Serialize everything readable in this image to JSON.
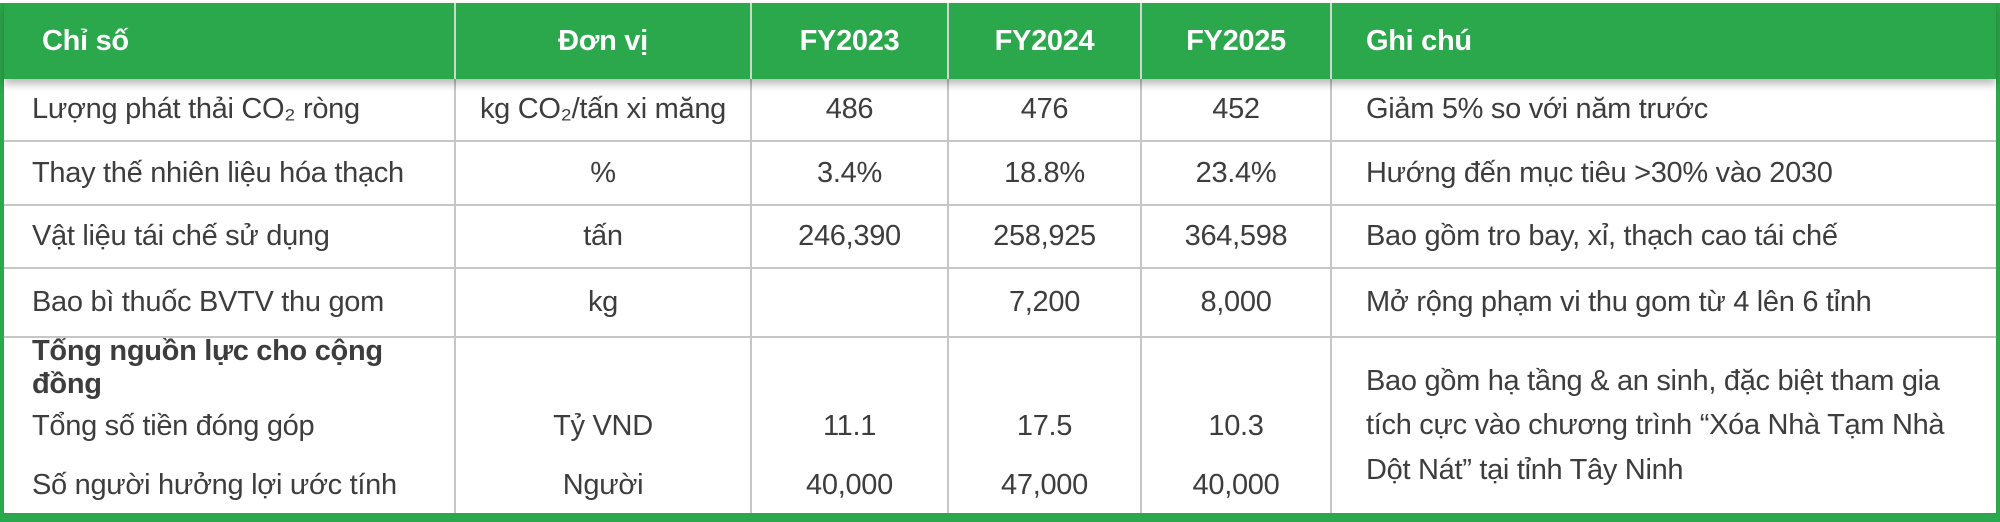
{
  "colors": {
    "accent_green": "#2aa84b",
    "text": "#3d3d3d",
    "grid_line": "#c6c6c6"
  },
  "table": {
    "headers": [
      "Chỉ số",
      "Đơn vị",
      "FY2023",
      "FY2024",
      "FY2025",
      "Ghi chú"
    ],
    "rows": [
      {
        "metric": "Lượng phát thải CO₂ ròng",
        "unit": "kg CO₂/tấn xi măng",
        "values": [
          "486",
          "476",
          "452"
        ],
        "note": "Giảm 5% so với năm trước"
      },
      {
        "metric": "Thay thế nhiên liệu hóa thạch",
        "unit": "%",
        "values": [
          "3.4%",
          "18.8%",
          "23.4%"
        ],
        "note": "Hướng đến mục tiêu >30% vào 2030"
      },
      {
        "metric": "Vật liệu tái chế sử dụng",
        "unit": "tấn",
        "values": [
          "246,390",
          "258,925",
          "364,598"
        ],
        "note": "Bao gồm tro bay, xỉ, thạch cao tái chế"
      },
      {
        "metric": "Bao bì thuốc BVTV thu gom",
        "unit": "kg",
        "values": [
          "",
          "7,200",
          "8,000"
        ],
        "note": "Mở rộng phạm vi thu gom từ 4 lên 6 tỉnh"
      }
    ],
    "group": {
      "title": "Tổng nguồn lực cho cộng đồng",
      "sub_rows": [
        {
          "label": "Tổng số tiền đóng góp",
          "unit": "Tỷ VND",
          "values": [
            "11.1",
            "17.5",
            "10.3"
          ]
        },
        {
          "label": "Số người hưởng lợi ước tính",
          "unit": "Người",
          "values": [
            "40,000",
            "47,000",
            "40,000"
          ]
        }
      ],
      "note": "Bao gồm hạ tầng & an sinh, đặc biệt tham gia tích cực vào chương trình “Xóa Nhà Tạm Nhà Dột Nát” tại tỉnh Tây Ninh"
    }
  }
}
